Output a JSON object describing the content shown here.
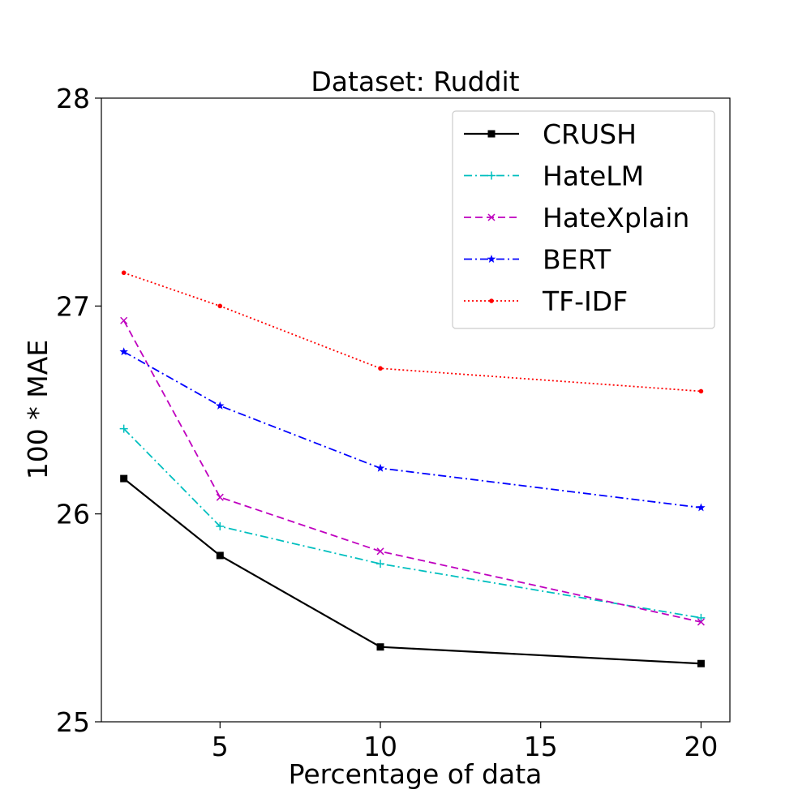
{
  "chart_data": {
    "type": "line",
    "title": "Dataset: Ruddit",
    "xlabel": "Percentage of data",
    "ylabel": "100 * MAE",
    "xlim": [
      1.3,
      20.9
    ],
    "ylim": [
      25,
      28
    ],
    "xticks": [
      5,
      10,
      15,
      20
    ],
    "yticks": [
      25,
      26,
      27,
      28
    ],
    "grid": false,
    "legend_position": "top-right",
    "x": [
      2,
      5,
      10,
      20
    ],
    "series": [
      {
        "name": "CRUSH",
        "values": [
          26.17,
          25.8,
          25.36,
          25.28
        ],
        "color": "#000000",
        "dash": "solid",
        "marker": "square"
      },
      {
        "name": "HateLM",
        "values": [
          26.41,
          25.94,
          25.76,
          25.5
        ],
        "color": "#00bfbf",
        "dash": "dashdot",
        "marker": "plus"
      },
      {
        "name": "HateXplain",
        "values": [
          26.93,
          26.08,
          25.82,
          25.48
        ],
        "color": "#bf00bf",
        "dash": "dashed",
        "marker": "x"
      },
      {
        "name": "BERT",
        "values": [
          26.78,
          26.52,
          26.22,
          26.03
        ],
        "color": "#0000ff",
        "dash": "dashdot",
        "marker": "star"
      },
      {
        "name": "TF-IDF",
        "values": [
          27.16,
          27.0,
          26.7,
          26.59
        ],
        "color": "#ff0000",
        "dash": "dotted",
        "marker": "dot"
      }
    ]
  }
}
